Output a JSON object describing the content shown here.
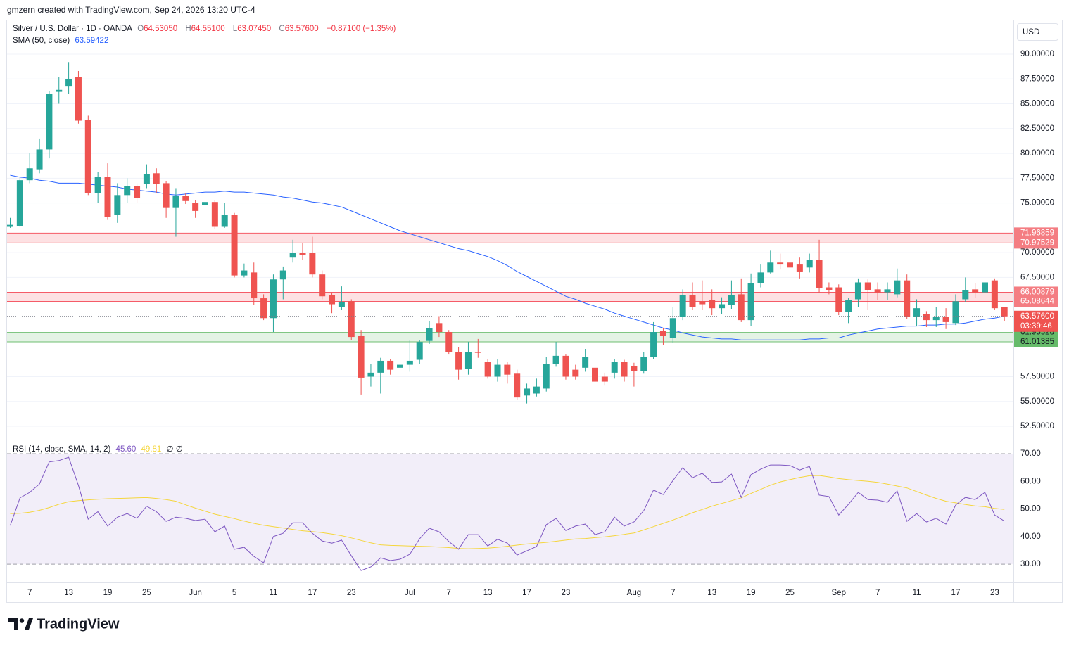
{
  "attribution": "gmzern created with TradingView.com, Sep 24, 2026 13:20 UTC-4",
  "logo": "TradingView",
  "chart_data": [
    {
      "type": "candlestick",
      "title": "Silver / U.S. Dollar · 1D · OANDA",
      "ohlc_legend": [
        {
          "label": "O",
          "value": "64.53050"
        },
        {
          "label": "H",
          "value": "64.55100"
        },
        {
          "label": "L",
          "value": "63.07450"
        },
        {
          "label": "C",
          "value": "63.57600"
        }
      ],
      "change": "−0.87100 (−1.35%)",
      "currency": "USD",
      "up_color": "#26a69a",
      "down_color": "#ef5350",
      "categories": [
        null,
        null,
        "7",
        null,
        null,
        null,
        "13",
        null,
        null,
        null,
        "19",
        null,
        null,
        null,
        "25",
        null,
        null,
        null,
        null,
        "Jun",
        null,
        null,
        null,
        "5",
        null,
        null,
        null,
        "11",
        null,
        null,
        null,
        "17",
        null,
        null,
        null,
        "23",
        null,
        null,
        null,
        null,
        null,
        "Jul",
        null,
        null,
        null,
        "7",
        null,
        null,
        null,
        "13",
        null,
        null,
        null,
        "17",
        null,
        null,
        null,
        "23",
        null,
        null,
        null,
        null,
        null,
        null,
        "Aug",
        null,
        null,
        null,
        "7",
        null,
        null,
        null,
        "13",
        null,
        null,
        null,
        "19",
        null,
        null,
        null,
        "25",
        null,
        null,
        null,
        null,
        "Sep",
        null,
        null,
        null,
        "7",
        null,
        null,
        null,
        "11",
        null,
        null,
        null,
        "17",
        null,
        null,
        null,
        "23",
        null
      ],
      "open": [
        72.6,
        72.7,
        77.3,
        78.4,
        80.4,
        86.2,
        86.8,
        87.7,
        83.4,
        76,
        77.6,
        73.8,
        75.8,
        76.7,
        76.9,
        78,
        77,
        74.5,
        75.7,
        75,
        74.8,
        75.1,
        72.6,
        73.8,
        67.7,
        68,
        65.4,
        63.4,
        67.3,
        69.5,
        70,
        70,
        67.8,
        65.7,
        64.5,
        65.1,
        61.6,
        57.5,
        57.9,
        59.1,
        58.4,
        58.7,
        59.2,
        61.1,
        62.9,
        62,
        60,
        58.3,
        60,
        59,
        57.5,
        58.7,
        57.8,
        55.6,
        55.8,
        56.3,
        58.8,
        59.6,
        58.2,
        58.4,
        58.4,
        57.5,
        57.9,
        59,
        58.6,
        58.1,
        59.5,
        62.1,
        61.4,
        63.5,
        65.7,
        65.1,
        65.2,
        64.4,
        64.7,
        65.8,
        63.2,
        66.9,
        68,
        69,
        69,
        68.8,
        68.5,
        69.3,
        66.5,
        66.5,
        64,
        65.3,
        67,
        66.3,
        66,
        65.8,
        67.2,
        63.5,
        63.8,
        63.2,
        63.5,
        62.9,
        65.3,
        66.3,
        66,
        67.2,
        64.5305
      ],
      "high": [
        73.5,
        77.5,
        80,
        81.5,
        86.3,
        87.7,
        89.2,
        88.3,
        83.8,
        78.1,
        79,
        77,
        77.5,
        77,
        78.9,
        78.5,
        77.2,
        76.5,
        76,
        75.3,
        77.1,
        75.3,
        75,
        74,
        68.9,
        69,
        65.8,
        67.8,
        68.6,
        71.3,
        71,
        71.6,
        68.2,
        66,
        66.6,
        65.3,
        62.2,
        58.8,
        59.4,
        59.3,
        59.3,
        61.2,
        61.2,
        63.1,
        63.6,
        62.2,
        60.5,
        61,
        61.3,
        59.3,
        59.3,
        59,
        58.2,
        56.8,
        57.3,
        59.5,
        61,
        59.8,
        58.7,
        60.3,
        58.7,
        57.9,
        59.3,
        59.2,
        58.9,
        60,
        63,
        62.4,
        64.5,
        66.3,
        67,
        67.2,
        66.3,
        65.5,
        67.2,
        67.4,
        67.9,
        68.8,
        70.2,
        69.9,
        69.9,
        69.5,
        69.9,
        71.3,
        67,
        66.8,
        65.4,
        67.4,
        67.3,
        67,
        67,
        68.4,
        67.8,
        65.3,
        64.1,
        64.5,
        64.4,
        65.8,
        67.5,
        66.9,
        67.6,
        67.4,
        64.551
      ],
      "low": [
        72.5,
        72.6,
        77,
        78,
        79.5,
        85,
        86,
        83,
        75.8,
        75,
        73.3,
        73,
        75,
        75,
        76.5,
        76,
        73.5,
        71.6,
        74.9,
        73.5,
        74,
        72.4,
        72.5,
        67.5,
        67.5,
        64.7,
        63.2,
        62,
        65.3,
        69,
        69.3,
        67.5,
        65.3,
        63.9,
        64.2,
        61.2,
        55.7,
        56.5,
        55.8,
        57.7,
        56.5,
        58,
        58.8,
        60.8,
        61.5,
        59.8,
        57.2,
        57.7,
        59.4,
        57.3,
        57,
        56.8,
        55.2,
        54.8,
        55.5,
        56,
        58.5,
        57.2,
        57.2,
        58,
        56.6,
        56.6,
        57.3,
        57,
        56.5,
        57.8,
        59.3,
        60.7,
        60.9,
        63.2,
        64.2,
        64.2,
        63.7,
        63.8,
        64.3,
        63,
        62.6,
        66.5,
        67.9,
        68.3,
        68,
        67.4,
        68,
        66,
        65.8,
        63.7,
        62.9,
        64.5,
        64.2,
        65.2,
        65.2,
        65.5,
        63.3,
        62.6,
        62.5,
        62.5,
        62.3,
        62.7,
        65,
        65.4,
        63.9,
        64.2,
        63.0745
      ],
      "close": [
        72.8,
        77.3,
        78.5,
        80.4,
        86,
        86.4,
        87.5,
        83.3,
        76,
        77.6,
        73.6,
        75.8,
        76.7,
        75.5,
        77.9,
        76.9,
        74.5,
        75.7,
        75.2,
        74.2,
        75.1,
        72.6,
        73.8,
        67.7,
        68.2,
        65.4,
        63.4,
        67.3,
        68.2,
        70,
        69.8,
        67.8,
        65.6,
        64.8,
        65,
        61.5,
        57.4,
        57.9,
        59.1,
        58.2,
        58.7,
        59.1,
        61,
        62.4,
        62,
        60,
        58.2,
        60,
        59.9,
        57.5,
        58.7,
        57.7,
        55.4,
        56.3,
        56.5,
        58.8,
        59.6,
        57.5,
        57.5,
        59.5,
        57,
        57,
        59,
        57.5,
        58.1,
        59.5,
        62,
        61.6,
        63.4,
        65.7,
        64.5,
        64.8,
        64.4,
        64.8,
        65.7,
        63.2,
        66.9,
        68,
        69,
        68.8,
        68.5,
        68.1,
        69.3,
        66.4,
        66.2,
        64,
        65.2,
        67,
        66.2,
        66,
        66.3,
        67.2,
        63.5,
        64.4,
        63.2,
        63.5,
        63,
        65.1,
        66.2,
        66,
        67,
        64.4,
        63.576
      ],
      "last_price_label": "63.57600",
      "countdown": "03:39:46",
      "overlays": [
        {
          "name": "SMA (50, close)",
          "color": "#2962ff",
          "values": [
            77.8,
            77.6,
            77.5,
            77.3,
            77.2,
            77.0,
            77.0,
            77.0,
            76.9,
            76.8,
            76.7,
            76.6,
            76.4,
            76.3,
            76.2,
            76.1,
            75.9,
            75.8,
            75.9,
            76.0,
            76.1,
            76.1,
            76.2,
            76.1,
            76.1,
            76.0,
            75.9,
            75.8,
            75.6,
            75.5,
            75.3,
            75.1,
            75.0,
            74.8,
            74.6,
            74.2,
            73.8,
            73.4,
            73.0,
            72.6,
            72.2,
            71.9,
            71.6,
            71.3,
            71.0,
            70.7,
            70.4,
            70.2,
            69.9,
            69.6,
            69.2,
            68.7,
            68.1,
            67.6,
            67.1,
            66.6,
            66.1,
            65.6,
            65.3,
            64.9,
            64.6,
            64.3,
            63.9,
            63.6,
            63.3,
            63.0,
            62.7,
            62.4,
            62.2,
            61.9,
            61.7,
            61.5,
            61.4,
            61.3,
            61.3,
            61.2,
            61.2,
            61.2,
            61.2,
            61.2,
            61.2,
            61.2,
            61.3,
            61.3,
            61.4,
            61.4,
            61.7,
            61.9,
            62.1,
            62.3,
            62.4,
            62.5,
            62.6,
            62.6,
            62.7,
            62.7,
            62.8,
            62.8,
            62.9,
            63.1,
            63.3,
            63.4,
            63.59422
          ]
        }
      ],
      "zones": [
        {
          "color": "#f23645",
          "values": [
            70.97529,
            71.96859
          ]
        },
        {
          "color": "#f23645",
          "values": [
            65.08644,
            66.00879
          ]
        },
        {
          "color": "#4caf50",
          "values": [
            61.01385,
            61.95328
          ]
        }
      ],
      "ylim": [
        51.37,
        93.33
      ],
      "yticks": [
        {
          "value": 52.5,
          "label": "52.50000"
        },
        {
          "value": 55,
          "label": "55.00000"
        },
        {
          "value": 57.5,
          "label": "57.50000"
        },
        {
          "value": 67.5,
          "label": "67.50000"
        },
        {
          "value": 70,
          "label": "70.00000"
        },
        {
          "value": 75,
          "label": "75.00000"
        },
        {
          "value": 77.5,
          "label": "77.50000"
        },
        {
          "value": 80,
          "label": "80.00000"
        },
        {
          "value": 82.5,
          "label": "82.50000"
        },
        {
          "value": 85,
          "label": "85.00000"
        },
        {
          "value": 87.5,
          "label": "87.50000"
        },
        {
          "value": 90,
          "label": "90.00000"
        }
      ],
      "grid": true
    },
    {
      "type": "line",
      "title": "RSI (14, close, SMA, 14, 2)",
      "symbols": "∅ ∅",
      "band_color": "#7e57c2",
      "series": [
        {
          "color": "#7e57c2",
          "last_label": "45.60",
          "values": [
            44,
            54,
            56,
            59,
            67,
            67.5,
            68.7,
            58.5,
            46.3,
            49,
            43.8,
            47,
            48.3,
            46.6,
            51,
            49,
            45.5,
            47,
            46.6,
            45.8,
            46.3,
            41.7,
            43.8,
            35.4,
            36.1,
            32.8,
            30.5,
            40,
            41.2,
            45,
            45,
            41.2,
            38.4,
            37.6,
            38.7,
            33,
            27.7,
            29,
            32.3,
            31.3,
            31.8,
            33.6,
            39.2,
            43,
            41.7,
            38.2,
            35.4,
            40.7,
            40.7,
            36.6,
            39,
            37.6,
            33.3,
            34.8,
            36.4,
            44.3,
            46.6,
            42.2,
            43.8,
            44.5,
            40.7,
            41.7,
            47,
            43.8,
            45.3,
            49.4,
            56.8,
            55.2,
            60.3,
            64.9,
            61.3,
            62.9,
            59.6,
            59.8,
            62.6,
            54.2,
            62.4,
            64.4,
            65.9,
            65.9,
            65.7,
            64.1,
            65.4,
            55,
            54.5,
            47.8,
            51.7,
            56,
            53.4,
            53.2,
            52.4,
            56.5,
            45.5,
            48.3,
            45.3,
            46.6,
            44.5,
            51.4,
            54.2,
            53.4,
            56,
            47.8,
            45.6
          ]
        },
        {
          "color": "#f5d63d",
          "values": [
            48.3,
            48.4,
            48.8,
            49.5,
            50.5,
            51.7,
            52.6,
            53.0,
            53.3,
            53.5,
            53.7,
            53.8,
            53.9,
            54.0,
            54.1,
            53.8,
            53.4,
            52.8,
            51.5,
            50.3,
            49.2,
            48.1,
            47.3,
            46.5,
            45.6,
            44.8,
            44.1,
            43.6,
            43.1,
            42.6,
            42.1,
            41.8,
            41.4,
            40.9,
            40.3,
            39.5,
            38.6,
            37.7,
            37.0,
            36.8,
            36.7,
            36.6,
            36.5,
            36.4,
            36.2,
            36.0,
            35.7,
            35.6,
            35.7,
            35.8,
            36.1,
            36.5,
            36.9,
            37.3,
            37.6,
            37.9,
            38.3,
            38.7,
            39.1,
            39.3,
            39.6,
            39.9,
            40.3,
            40.8,
            41.3,
            42.4,
            43.6,
            44.8,
            46.0,
            47.3,
            48.6,
            49.8,
            51.0,
            52.0,
            53.0,
            54.0,
            55.6,
            57.1,
            58.6,
            59.8,
            60.6,
            61.4,
            62.0,
            62.1,
            61.6,
            61.0,
            60.6,
            60.3,
            60.0,
            59.6,
            59.0,
            58.3,
            57.6,
            56.3,
            55.0,
            53.8,
            52.8,
            52.2,
            51.6,
            51.1,
            50.8,
            50.2,
            49.81
          ]
        }
      ],
      "ylim": [
        23.4,
        75.35
      ],
      "yticks": [
        {
          "value": 30,
          "label": "30.00"
        },
        {
          "value": 40,
          "label": "40.00"
        },
        {
          "value": 50,
          "label": "50.00"
        },
        {
          "value": 60,
          "label": "60.00"
        },
        {
          "value": 70,
          "label": "70.00"
        }
      ]
    }
  ]
}
